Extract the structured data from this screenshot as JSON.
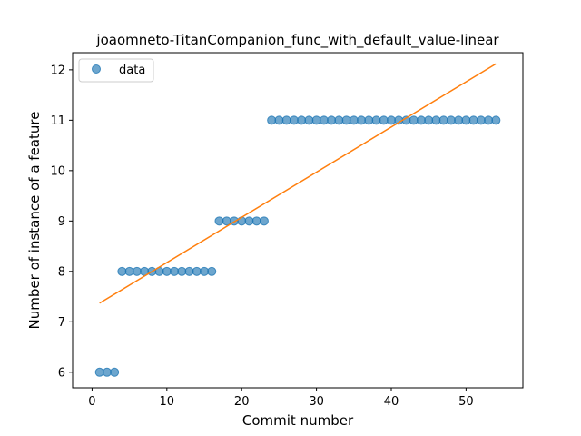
{
  "chart_data": {
    "type": "scatter",
    "title": "joaomneto-TitanCompanion_func_with_default_value-linear",
    "xlabel": "Commit number",
    "ylabel": "Number of instance of a feature",
    "xlim": [
      -2.6,
      57.6
    ],
    "ylim": [
      5.69,
      12.34
    ],
    "xticks": [
      0,
      10,
      20,
      30,
      40,
      50
    ],
    "yticks": [
      6,
      7,
      8,
      9,
      10,
      11,
      12
    ],
    "grid": false,
    "legend": {
      "placement": "top-left",
      "entries": [
        "data"
      ]
    },
    "colors": {
      "data": "#1f77b4",
      "fit": "#ff7f0e"
    },
    "series": [
      {
        "name": "data",
        "kind": "scatter",
        "x": [
          1,
          2,
          3,
          4,
          5,
          6,
          7,
          8,
          9,
          10,
          11,
          12,
          13,
          14,
          15,
          16,
          17,
          18,
          19,
          20,
          21,
          22,
          23,
          24,
          25,
          26,
          27,
          28,
          29,
          30,
          31,
          32,
          33,
          34,
          35,
          36,
          37,
          38,
          39,
          40,
          41,
          42,
          43,
          44,
          45,
          46,
          47,
          48,
          49,
          50,
          51,
          52,
          53,
          54
        ],
        "y": [
          6,
          6,
          6,
          8,
          8,
          8,
          8,
          8,
          8,
          8,
          8,
          8,
          8,
          8,
          8,
          8,
          9,
          9,
          9,
          9,
          9,
          9,
          9,
          11,
          11,
          11,
          11,
          11,
          11,
          11,
          11,
          11,
          11,
          11,
          11,
          11,
          11,
          11,
          11,
          11,
          11,
          11,
          11,
          11,
          11,
          11,
          11,
          11,
          11,
          11,
          11,
          11,
          11,
          11
        ]
      },
      {
        "kind": "line",
        "x": [
          1,
          54
        ],
        "y": [
          7.37,
          12.12
        ]
      }
    ]
  }
}
